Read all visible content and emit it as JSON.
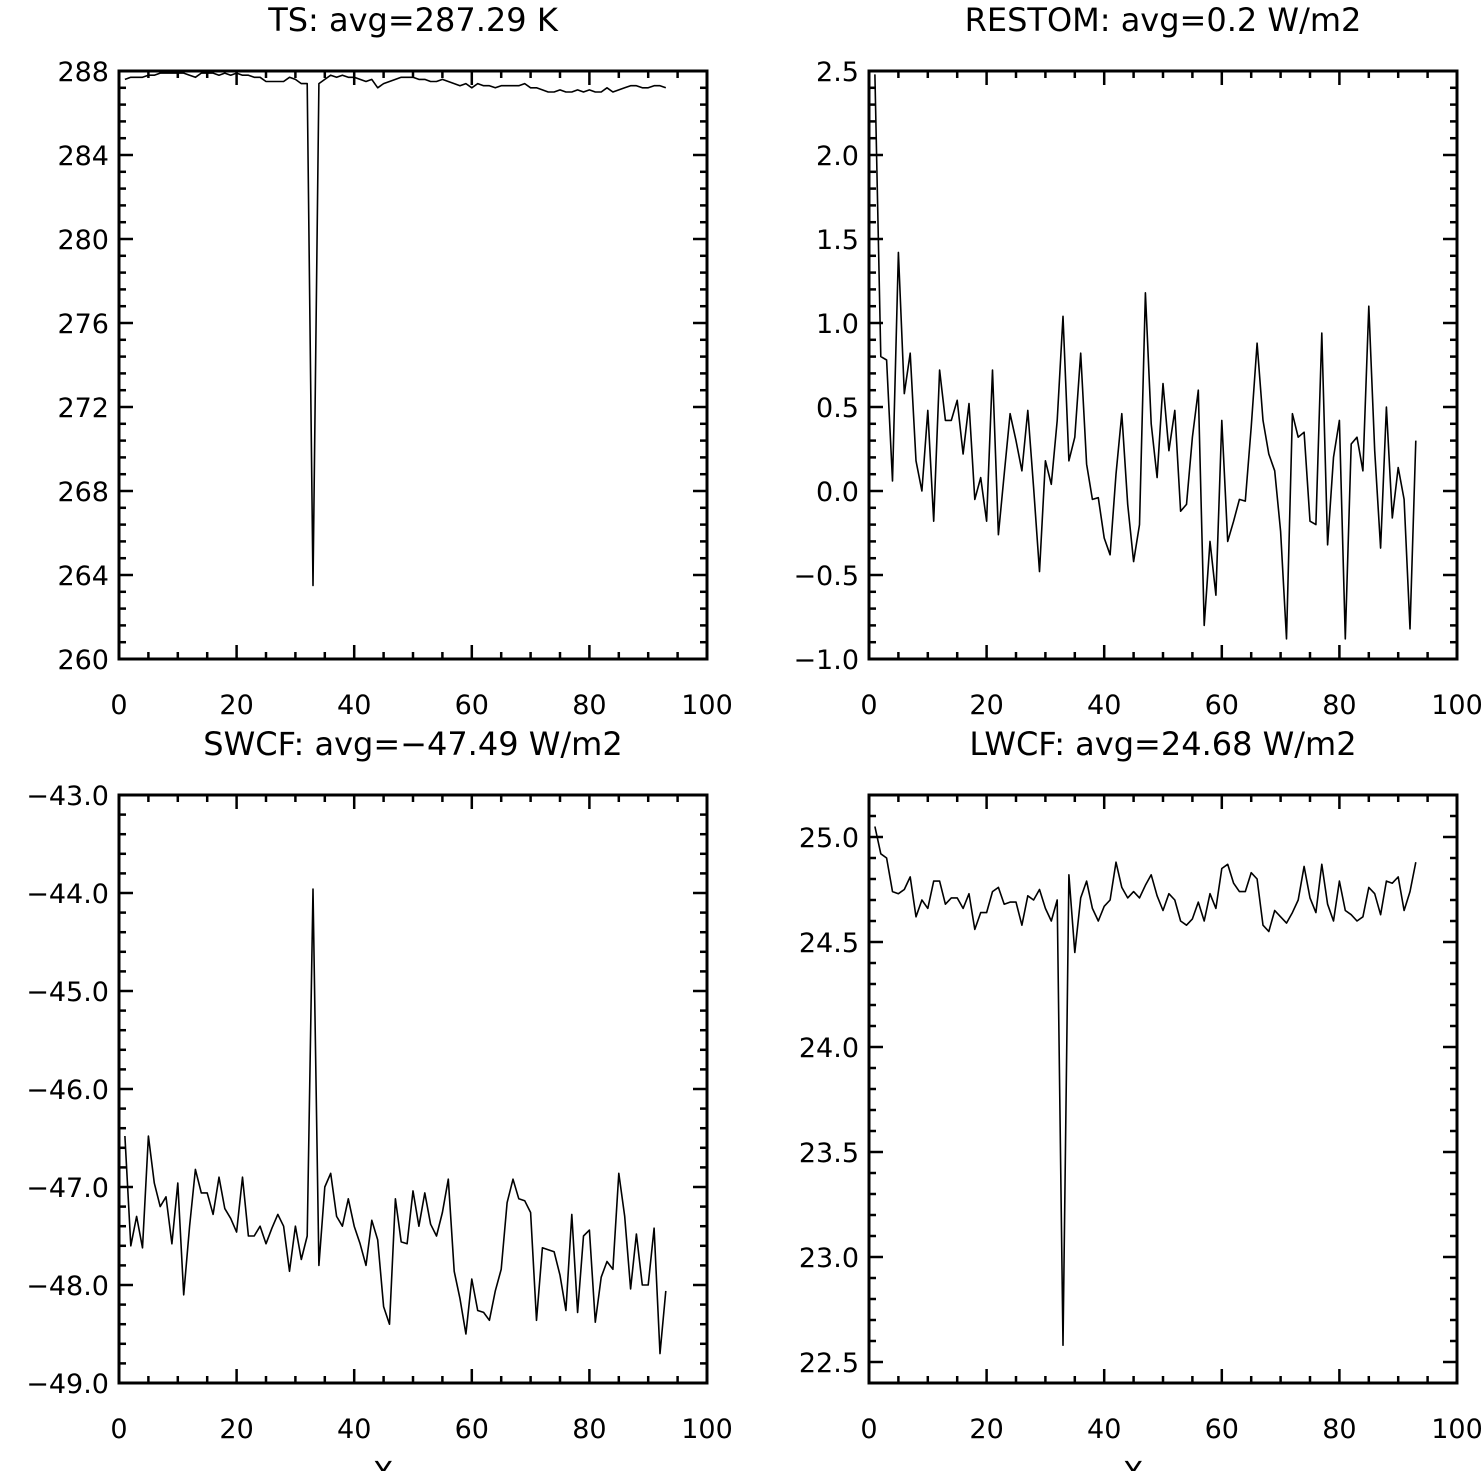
{
  "chart_data": [
    {
      "type": "line",
      "title": "TS: avg=287.29 K",
      "xlabel": "",
      "ylabel": "",
      "xlim": [
        0,
        100
      ],
      "ylim": [
        260,
        288
      ],
      "x_ticks": [
        0,
        20,
        40,
        60,
        80,
        100
      ],
      "x_tick_labels": [
        "0",
        "20",
        "40",
        "60",
        "80",
        "100"
      ],
      "y_ticks": [
        260,
        264,
        268,
        272,
        276,
        280,
        284,
        288
      ],
      "y_tick_labels": [
        "260",
        "264",
        "268",
        "272",
        "276",
        "280",
        "284",
        "288"
      ],
      "grid": false,
      "series": [
        {
          "x_start": 1,
          "x_step": 1,
          "values": [
            287.6,
            287.7,
            287.7,
            287.7,
            287.8,
            287.8,
            287.9,
            287.9,
            287.9,
            287.9,
            287.9,
            287.8,
            287.7,
            287.9,
            287.9,
            287.9,
            287.8,
            287.9,
            287.8,
            287.9,
            287.8,
            287.8,
            287.7,
            287.7,
            287.5,
            287.5,
            287.5,
            287.5,
            287.7,
            287.6,
            287.4,
            287.4,
            263.5,
            287.4,
            287.6,
            287.8,
            287.7,
            287.8,
            287.7,
            287.7,
            287.6,
            287.5,
            287.6,
            287.2,
            287.4,
            287.5,
            287.6,
            287.7,
            287.7,
            287.7,
            287.6,
            287.6,
            287.5,
            287.5,
            287.6,
            287.5,
            287.4,
            287.3,
            287.4,
            287.2,
            287.4,
            287.3,
            287.3,
            287.2,
            287.3,
            287.3,
            287.3,
            287.3,
            287.4,
            287.2,
            287.2,
            287.1,
            287.0,
            287.0,
            287.1,
            287.0,
            287.0,
            287.1,
            287.0,
            287.1,
            287.0,
            287.0,
            287.2,
            287.0,
            287.1,
            287.2,
            287.3,
            287.3,
            287.2,
            287.2,
            287.3,
            287.3,
            287.2
          ]
        }
      ]
    },
    {
      "type": "line",
      "title": "RESTOM: avg=0.2 W/m2",
      "xlabel": "",
      "ylabel": "",
      "xlim": [
        0,
        100
      ],
      "ylim": [
        -1.0,
        2.5
      ],
      "x_ticks": [
        0,
        20,
        40,
        60,
        80,
        100
      ],
      "x_tick_labels": [
        "0",
        "20",
        "40",
        "60",
        "80",
        "100"
      ],
      "y_ticks": [
        -1.0,
        -0.5,
        0.0,
        0.5,
        1.0,
        1.5,
        2.0,
        2.5
      ],
      "y_tick_labels": [
        "−1.0",
        "−0.5",
        "0.0",
        "0.5",
        "1.0",
        "1.5",
        "2.0",
        "2.5"
      ],
      "grid": false,
      "series": [
        {
          "x_start": 1,
          "x_step": 1,
          "values": [
            2.48,
            0.8,
            0.78,
            0.06,
            1.42,
            0.58,
            0.82,
            0.18,
            0.0,
            0.48,
            -0.18,
            0.72,
            0.42,
            0.42,
            0.54,
            0.22,
            0.52,
            -0.05,
            0.08,
            -0.18,
            0.72,
            -0.26,
            0.1,
            0.46,
            0.3,
            0.12,
            0.48,
            0.02,
            -0.48,
            0.18,
            0.04,
            0.42,
            1.04,
            0.18,
            0.32,
            0.82,
            0.16,
            -0.05,
            -0.04,
            -0.28,
            -0.38,
            0.1,
            0.46,
            -0.08,
            -0.42,
            -0.2,
            1.18,
            0.4,
            0.08,
            0.64,
            0.24,
            0.48,
            -0.12,
            -0.08,
            0.32,
            0.6,
            -0.8,
            -0.3,
            -0.62,
            0.42,
            -0.3,
            -0.18,
            -0.05,
            -0.06,
            0.38,
            0.88,
            0.42,
            0.22,
            0.12,
            -0.24,
            -0.88,
            0.46,
            0.32,
            0.35,
            -0.18,
            -0.2,
            0.94,
            -0.32,
            0.2,
            0.42,
            -0.88,
            0.28,
            0.32,
            0.12,
            1.1,
            0.24,
            -0.34,
            0.5,
            -0.16,
            0.14,
            -0.05,
            -0.82,
            0.3
          ]
        }
      ]
    },
    {
      "type": "line",
      "title": "SWCF: avg=−47.49 W/m2",
      "xlabel": "X",
      "ylabel": "",
      "xlim": [
        0,
        100
      ],
      "ylim": [
        -49.0,
        -43.0
      ],
      "x_ticks": [
        0,
        20,
        40,
        60,
        80,
        100
      ],
      "x_tick_labels": [
        "0",
        "20",
        "40",
        "60",
        "80",
        "100"
      ],
      "y_ticks": [
        -49.0,
        -48.0,
        -47.0,
        -46.0,
        -45.0,
        -44.0,
        -43.0
      ],
      "y_tick_labels": [
        "−49.0",
        "−48.0",
        "−47.0",
        "−46.0",
        "−45.0",
        "−44.0",
        "−43.0"
      ],
      "grid": false,
      "series": [
        {
          "x_start": 1,
          "x_step": 1,
          "values": [
            -46.48,
            -47.6,
            -47.3,
            -47.62,
            -46.48,
            -46.96,
            -47.2,
            -47.1,
            -47.58,
            -46.96,
            -48.1,
            -47.4,
            -46.82,
            -47.06,
            -47.06,
            -47.28,
            -46.9,
            -47.22,
            -47.32,
            -47.46,
            -46.9,
            -47.5,
            -47.5,
            -47.4,
            -47.58,
            -47.42,
            -47.28,
            -47.4,
            -47.86,
            -47.4,
            -47.74,
            -47.5,
            -43.96,
            -47.8,
            -47.0,
            -46.86,
            -47.3,
            -47.4,
            -47.12,
            -47.4,
            -47.58,
            -47.8,
            -47.34,
            -47.54,
            -48.22,
            -48.4,
            -47.12,
            -47.56,
            -47.58,
            -47.04,
            -47.4,
            -47.06,
            -47.38,
            -47.5,
            -47.26,
            -46.92,
            -47.86,
            -48.14,
            -48.5,
            -47.94,
            -48.26,
            -48.28,
            -48.36,
            -48.06,
            -47.84,
            -47.16,
            -46.92,
            -47.12,
            -47.14,
            -47.26,
            -48.36,
            -47.62,
            -47.64,
            -47.66,
            -47.9,
            -48.26,
            -47.28,
            -48.28,
            -47.5,
            -47.44,
            -48.38,
            -47.92,
            -47.76,
            -47.84,
            -46.86,
            -47.3,
            -48.04,
            -47.48,
            -48.0,
            -48.0,
            -47.42,
            -48.7,
            -48.06
          ]
        }
      ]
    },
    {
      "type": "line",
      "title": "LWCF: avg=24.68 W/m2",
      "xlabel": "X",
      "ylabel": "",
      "xlim": [
        0,
        100
      ],
      "ylim": [
        22.4,
        25.2
      ],
      "x_ticks": [
        0,
        20,
        40,
        60,
        80,
        100
      ],
      "x_tick_labels": [
        "0",
        "20",
        "40",
        "60",
        "80",
        "100"
      ],
      "y_ticks": [
        22.5,
        23.0,
        23.5,
        24.0,
        24.5,
        25.0
      ],
      "y_tick_labels": [
        "22.5",
        "23.0",
        "23.5",
        "24.0",
        "24.5",
        "25.0"
      ],
      "grid": false,
      "series": [
        {
          "x_start": 1,
          "x_step": 1,
          "values": [
            25.05,
            24.92,
            24.9,
            24.74,
            24.73,
            24.75,
            24.81,
            24.62,
            24.7,
            24.66,
            24.79,
            24.79,
            24.68,
            24.71,
            24.71,
            24.66,
            24.73,
            24.56,
            24.64,
            24.64,
            24.74,
            24.76,
            24.68,
            24.69,
            24.69,
            24.58,
            24.72,
            24.7,
            24.75,
            24.66,
            24.6,
            24.7,
            22.58,
            24.82,
            24.45,
            24.71,
            24.79,
            24.66,
            24.6,
            24.67,
            24.7,
            24.88,
            24.76,
            24.71,
            24.74,
            24.71,
            24.77,
            24.82,
            24.72,
            24.65,
            24.73,
            24.7,
            24.6,
            24.58,
            24.61,
            24.69,
            24.6,
            24.73,
            24.66,
            24.85,
            24.87,
            24.78,
            24.74,
            24.74,
            24.83,
            24.8,
            24.58,
            24.55,
            24.65,
            24.62,
            24.59,
            24.64,
            24.7,
            24.86,
            24.71,
            24.64,
            24.87,
            24.68,
            24.6,
            24.79,
            24.65,
            24.63,
            24.6,
            24.62,
            24.76,
            24.73,
            24.63,
            24.79,
            24.78,
            24.81,
            24.65,
            24.74,
            24.88
          ]
        }
      ]
    }
  ]
}
